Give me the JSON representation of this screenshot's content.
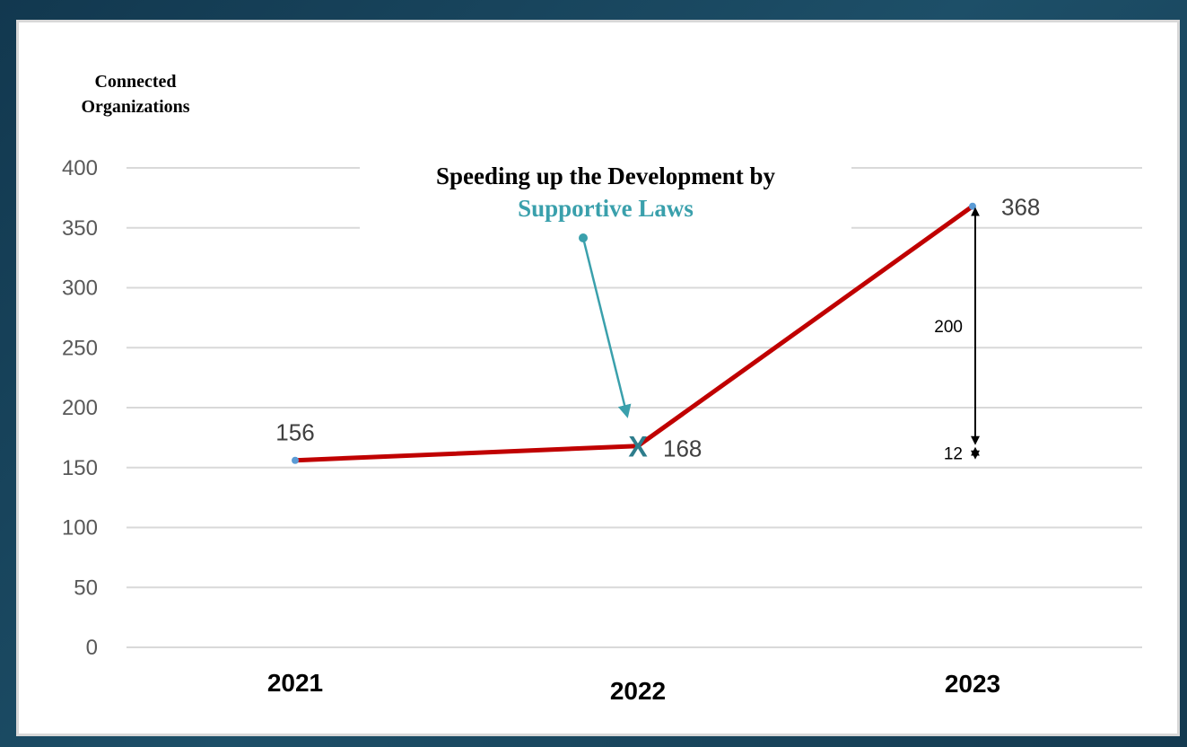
{
  "chart_data": {
    "type": "line",
    "ylabel_line1": "Connected",
    "ylabel_line2": "Organizations",
    "annotation_line1": "Speeding up the Development by",
    "annotation_line2": "Supportive Laws",
    "categories": [
      "2021",
      "2022",
      "2023"
    ],
    "series": [
      {
        "values": [
          156,
          168,
          368
        ]
      }
    ],
    "data_labels": [
      "156",
      "168",
      "368"
    ],
    "ylim": [
      0,
      400
    ],
    "yticks": [
      0,
      50,
      100,
      150,
      200,
      250,
      300,
      350,
      400
    ],
    "marker_label": "X",
    "differences": [
      {
        "label": "200",
        "from": 168,
        "to": 368
      },
      {
        "label": "12",
        "from": 156,
        "to": 168
      }
    ],
    "grid": true,
    "colors": {
      "line": "#c00000",
      "accent": "#3aa0ac",
      "grid": "#d9d9d9",
      "marker": "#2e7d8c"
    }
  }
}
